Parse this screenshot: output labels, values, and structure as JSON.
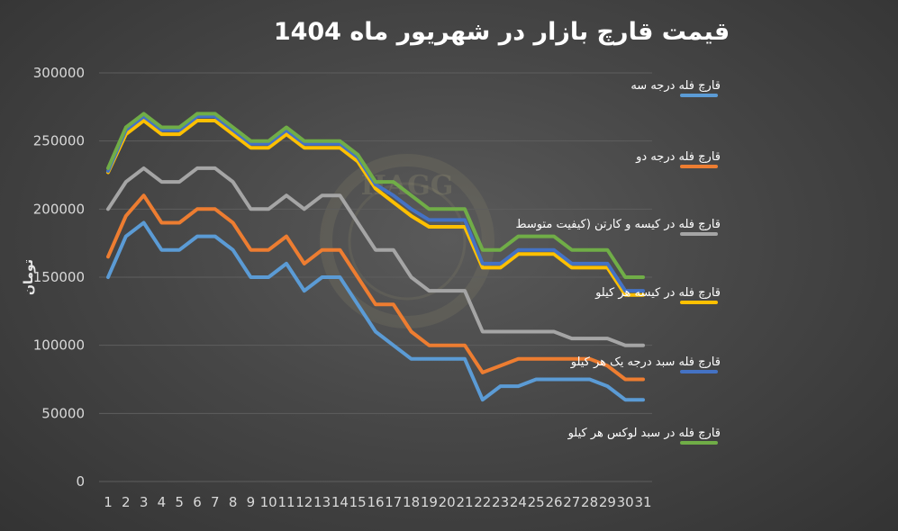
{
  "chart_data": {
    "type": "line",
    "title": "قیمت قارچ بازار در شهریور ماه 1404",
    "xlabel": "",
    "ylabel": "تومان",
    "ylim": [
      0,
      300000
    ],
    "yticks": [
      0,
      50000,
      100000,
      150000,
      200000,
      250000,
      300000
    ],
    "x": [
      1,
      2,
      3,
      4,
      5,
      6,
      7,
      8,
      9,
      10,
      11,
      12,
      13,
      14,
      15,
      16,
      17,
      18,
      19,
      20,
      21,
      22,
      23,
      24,
      25,
      26,
      27,
      28,
      29,
      30,
      31
    ],
    "grid": true,
    "legend_position": "right",
    "watermark": "HAGG",
    "series": [
      {
        "name": "قارچ فله درجه سه",
        "color": "#5b9bd5",
        "values": [
          150000,
          180000,
          190000,
          170000,
          170000,
          180000,
          180000,
          170000,
          150000,
          150000,
          160000,
          140000,
          150000,
          150000,
          130000,
          110000,
          100000,
          90000,
          90000,
          90000,
          90000,
          60000,
          70000,
          70000,
          75000,
          75000,
          75000,
          75000,
          70000,
          60000,
          60000
        ]
      },
      {
        "name": "قارچ فله درجه دو",
        "color": "#ed7d31",
        "values": [
          165000,
          195000,
          210000,
          190000,
          190000,
          200000,
          200000,
          190000,
          170000,
          170000,
          180000,
          160000,
          170000,
          170000,
          150000,
          130000,
          130000,
          110000,
          100000,
          100000,
          100000,
          80000,
          85000,
          90000,
          90000,
          90000,
          90000,
          90000,
          85000,
          75000,
          75000
        ]
      },
      {
        "name": "قارچ فله در کیسه و کارتن (کیفیت متوسط",
        "color": "#a5a5a5",
        "values": [
          200000,
          220000,
          230000,
          220000,
          220000,
          230000,
          230000,
          220000,
          200000,
          200000,
          210000,
          200000,
          210000,
          210000,
          190000,
          170000,
          170000,
          150000,
          140000,
          140000,
          140000,
          110000,
          110000,
          110000,
          110000,
          110000,
          105000,
          105000,
          105000,
          100000,
          100000
        ]
      },
      {
        "name": "قارچ فله در کیسه هر کیلو",
        "color": "#ffc000",
        "values": [
          227000,
          255000,
          265000,
          255000,
          255000,
          265000,
          265000,
          255000,
          245000,
          245000,
          255000,
          245000,
          245000,
          245000,
          235000,
          215000,
          205000,
          195000,
          187000,
          187000,
          187000,
          157000,
          157000,
          167000,
          167000,
          167000,
          157000,
          157000,
          157000,
          137000,
          137000
        ]
      },
      {
        "name": "قارچ فله سبد درجه یک هر کیلو",
        "color": "#4472c4",
        "values": [
          228000,
          258000,
          268000,
          258000,
          258000,
          268000,
          268000,
          258000,
          248000,
          248000,
          258000,
          248000,
          248000,
          248000,
          238000,
          218000,
          210000,
          200000,
          192000,
          192000,
          192000,
          160000,
          160000,
          170000,
          170000,
          170000,
          160000,
          160000,
          160000,
          140000,
          140000
        ]
      },
      {
        "name": "قارچ فله در سبد لوکس هر کیلو",
        "color": "#70ad47",
        "values": [
          230000,
          260000,
          270000,
          260000,
          260000,
          270000,
          270000,
          260000,
          250000,
          250000,
          260000,
          250000,
          250000,
          250000,
          240000,
          220000,
          220000,
          210000,
          200000,
          200000,
          200000,
          170000,
          170000,
          180000,
          180000,
          180000,
          170000,
          170000,
          170000,
          150000,
          150000
        ]
      }
    ]
  }
}
